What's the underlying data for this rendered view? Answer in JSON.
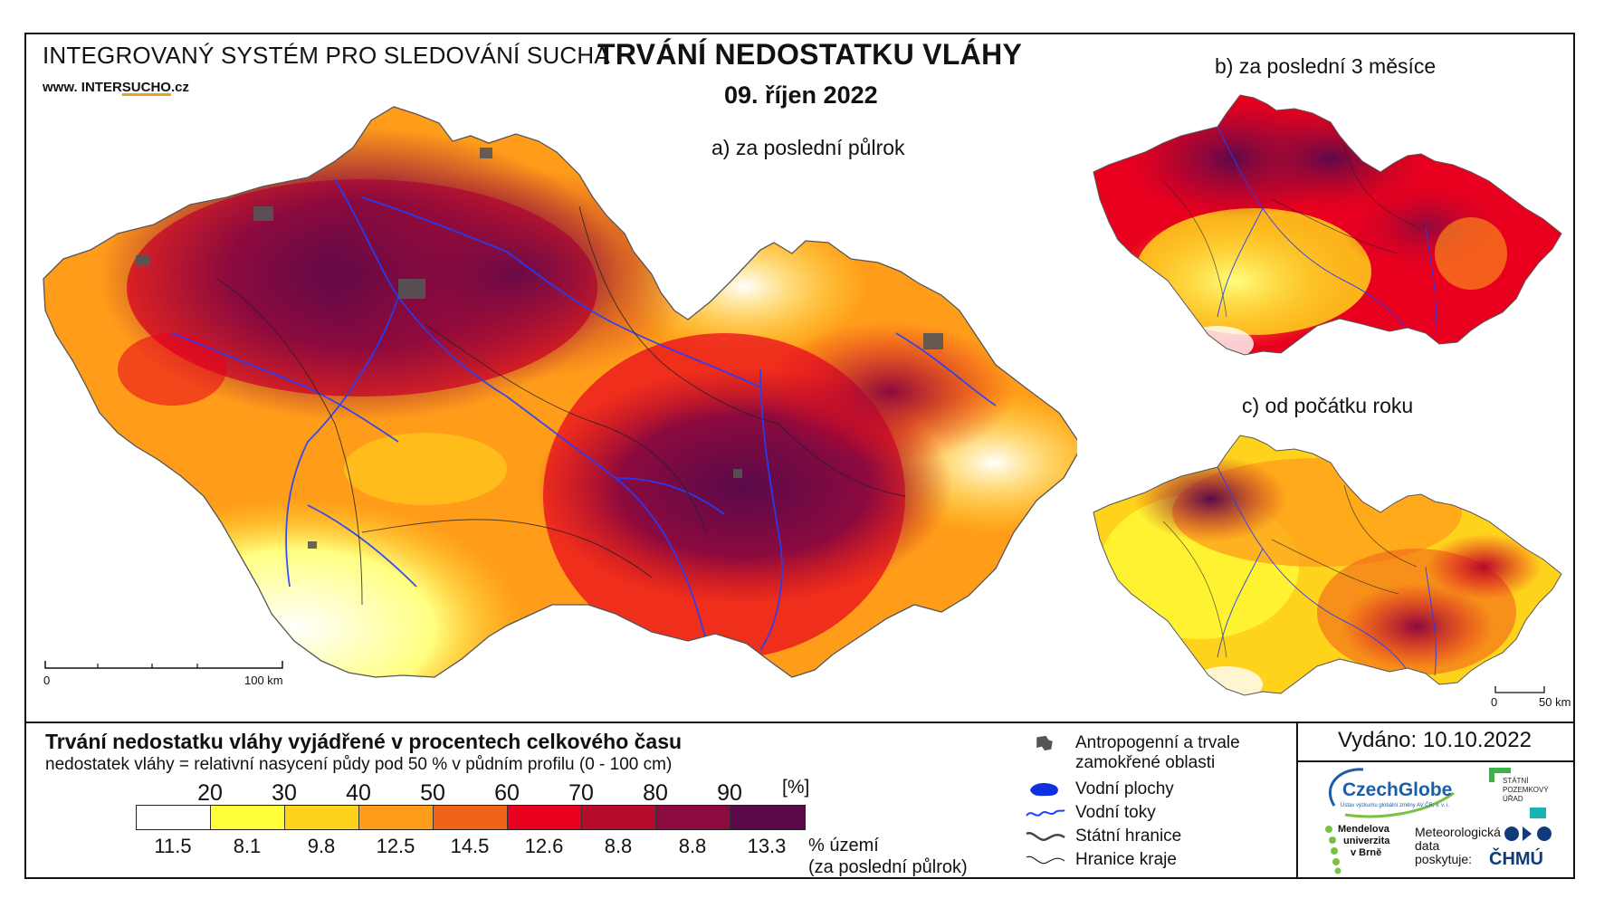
{
  "header": {
    "system_title": "INTEGROVANÝ SYSTÉM PRO SLEDOVÁNÍ SUCHA",
    "website_prefix": "www. INTER",
    "website_brand": "SUCHO",
    "website_suffix": ".cz",
    "title": "TRVÁNÍ NEDOSTATKU VLÁHY",
    "date": "09. říjen 2022"
  },
  "maps": {
    "a": {
      "label": "a) za poslední půlrok",
      "scale_start": "0",
      "scale_end": "100 km"
    },
    "b": {
      "label": "b) za poslední 3 měsíce"
    },
    "c": {
      "label": "c) od počátku roku",
      "scale_start": "0",
      "scale_end": "50 km"
    }
  },
  "legend": {
    "title": "Trvání nedostatku vláhy vyjádřené v procentech celkového času",
    "subtitle": "nedostatek vláhy = relativní nasycení půdy pod 50 % v půdním profilu (0 - 100 cm)",
    "unit": "[%]",
    "thresholds": [
      "20",
      "30",
      "40",
      "50",
      "60",
      "70",
      "80",
      "90"
    ],
    "colors": [
      "#ffffff",
      "#ffff3a",
      "#ffd21c",
      "#ff9c1a",
      "#f06419",
      "#e8001e",
      "#b80a2a",
      "#8c0a3e",
      "#5a0a4a"
    ],
    "area_percent": [
      "11.5",
      "8.1",
      "9.8",
      "12.5",
      "14.5",
      "12.6",
      "8.8",
      "8.8",
      "13.3"
    ],
    "area_label_line1": "% území",
    "area_label_line2": "(za poslední půlrok)"
  },
  "symbols": [
    {
      "name": "anthropogenic-area",
      "label_line1": "Antropogenní a trvale",
      "label_line2": "zamokřené oblasti",
      "color": "#555555"
    },
    {
      "name": "water-bodies",
      "label_line1": "Vodní plochy",
      "label_line2": "",
      "color": "#1030e0"
    },
    {
      "name": "rivers",
      "label_line1": "Vodní toky",
      "label_line2": "",
      "color": "#2040ff"
    },
    {
      "name": "state-border",
      "label_line1": "Státní hranice",
      "label_line2": "",
      "color": "#444444"
    },
    {
      "name": "region-border",
      "label_line1": "Hranice kraje",
      "label_line2": "",
      "color": "#222222"
    }
  ],
  "footer": {
    "issued": "Vydáno: 10.10.2022",
    "czechglobe": "CzechGlobe",
    "czechglobe_sub": "Ústav výzkumu globální změny AV ČR, v. v. i.",
    "spu_line1": "STÁTNÍ",
    "spu_line2": "POZEMKOVÝ",
    "spu_line3": "ÚŘAD",
    "mendel_line1": "Mendelova",
    "mendel_line2": "univerzita",
    "mendel_line3": "v Brně",
    "meteo_line1": "Meteorologická",
    "meteo_line2": "data",
    "meteo_line3": "poskytuje:",
    "chmu": "ČHMÚ"
  }
}
